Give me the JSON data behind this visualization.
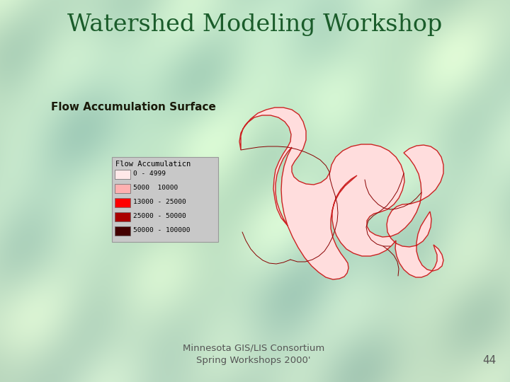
{
  "title": "Watershed Modeling Workshop",
  "subtitle": "Flow Accumulation Surface",
  "footer_line1": "Minnesota GIS/LIS Consortium",
  "footer_line2": "Spring Workshops 2000'",
  "page_number": "44",
  "title_color": "#1a5c2a",
  "subtitle_color": "#1a1a0a",
  "footer_color": "#555555",
  "legend_title": "Flow Accumulaticn",
  "legend_labels": [
    "0 - 4999",
    "5000  10000",
    "13000 - 25000",
    "25000 - 50000",
    "50000 - 100000"
  ],
  "legend_colors": [
    "#ffe8e8",
    "#ffb0b0",
    "#ff0000",
    "#aa0000",
    "#440000"
  ],
  "watershed_fill": "#ffdddd",
  "watershed_outline": "#cc2222",
  "river_color": "#880000",
  "bg_base": [
    0.78,
    0.88,
    0.8
  ]
}
